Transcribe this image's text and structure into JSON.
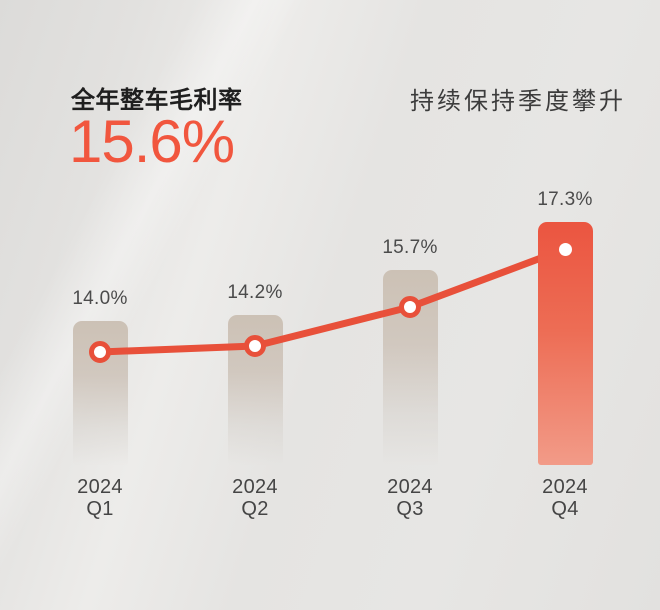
{
  "header": {
    "left_label": "全年整车毛利率",
    "left_value": "15.6%",
    "right_label": "持续保持季度攀升"
  },
  "chart_data": {
    "type": "bar",
    "subtype": "bar-with-line-overlay",
    "categories": [
      [
        "2024",
        "Q1"
      ],
      [
        "2024",
        "Q2"
      ],
      [
        "2024",
        "Q3"
      ],
      [
        "2024",
        "Q4"
      ]
    ],
    "values": [
      14.0,
      14.2,
      15.7,
      17.3
    ],
    "value_labels": [
      "14.0%",
      "14.2%",
      "15.7%",
      "17.3%"
    ],
    "highlight_index": 3,
    "title": "全年整车毛利率 15.6%",
    "subtitle": "持续保持季度攀升",
    "xlabel": "",
    "ylabel": "",
    "legend": "none",
    "grid": false,
    "axes_visible": false,
    "colors": {
      "accent": "#e8503a",
      "headline_value": "#f1563e",
      "bar_neutral_top": "#ccc1b5",
      "bar_highlight_top": "#eb5540",
      "bar_highlight_bottom": "#f29b88",
      "marker_fill": "#ffffff",
      "text_dark": "#1f1f1f",
      "text_gray": "#4b4b4b",
      "background": "#e5e4e2"
    }
  }
}
